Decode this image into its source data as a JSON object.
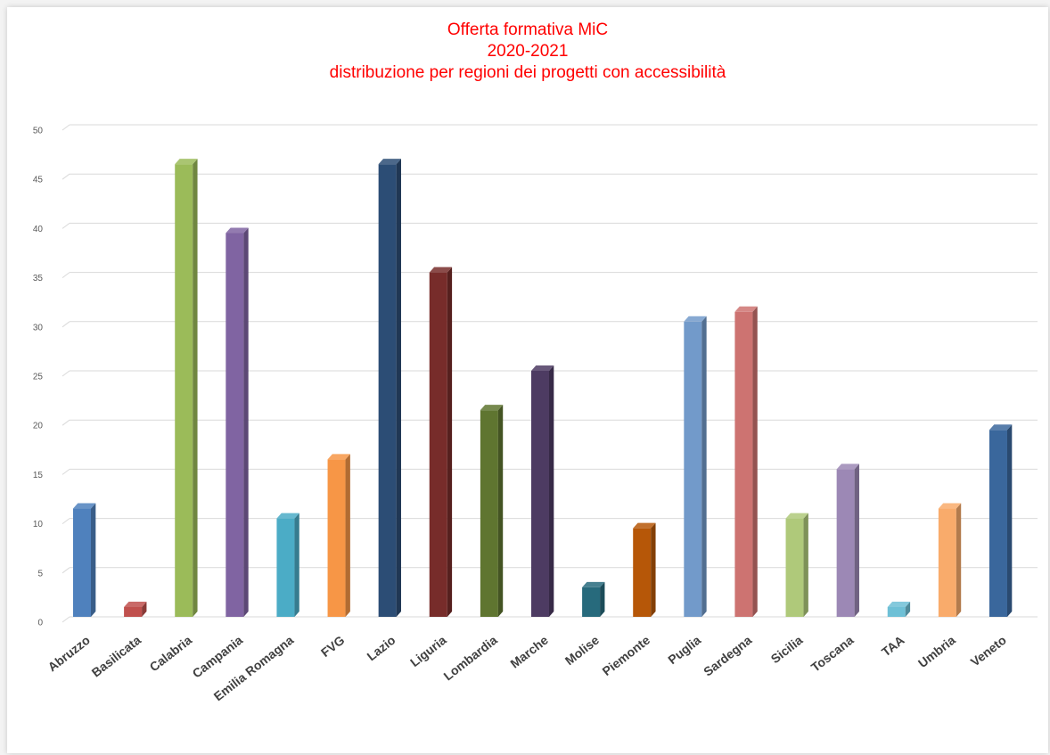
{
  "chart_data": {
    "type": "bar",
    "title_lines": [
      "Offerta formativa MiC",
      "2020-2021",
      "distribuzione per regioni dei progetti con accessibilità"
    ],
    "categories": [
      "Abruzzo",
      "Basilicata",
      "Calabria",
      "Campania",
      "Emilia Romagna",
      "FVG",
      "Lazio",
      "Liguria",
      "Lombardia",
      "Marche",
      "Molise",
      "Piemonte",
      "Puglia",
      "Sardegna",
      "Sicilia",
      "Toscana",
      "TAA",
      "Umbria",
      "Veneto"
    ],
    "values": [
      11,
      1,
      46,
      39,
      10,
      16,
      46,
      35,
      21,
      25,
      3,
      9,
      30,
      31,
      10,
      15,
      1,
      11,
      19
    ],
    "colors": [
      "#4f81bd",
      "#c0504d",
      "#9bbb59",
      "#8064a2",
      "#4bacc6",
      "#f79646",
      "#2c4d75",
      "#772c2a",
      "#5f7530",
      "#4d3b62",
      "#276a7c",
      "#b65708",
      "#729aca",
      "#cd7371",
      "#afc97a",
      "#9c88b5",
      "#6ec0d6",
      "#f9ab6b",
      "#3a679c"
    ],
    "y_ticks": [
      "0",
      "5",
      "10",
      "15",
      "20",
      "25",
      "30",
      "35",
      "40",
      "45",
      "50"
    ],
    "ylim": [
      0,
      50
    ],
    "grid": true,
    "legend": "none"
  }
}
